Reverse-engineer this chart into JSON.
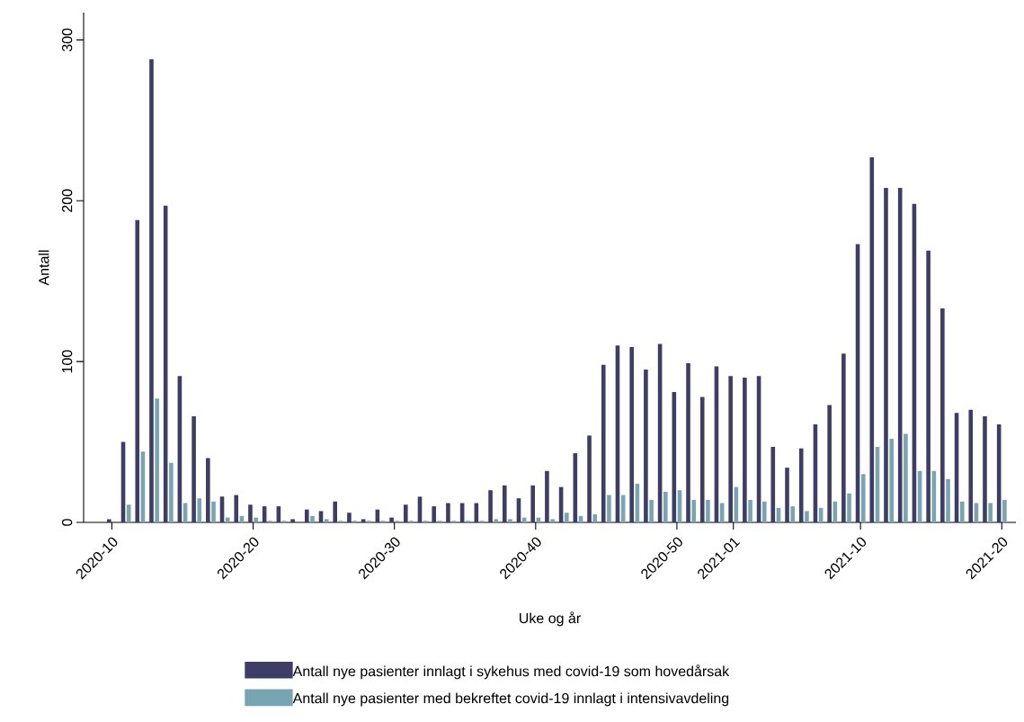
{
  "chart_data": {
    "type": "bar",
    "xlabel": "Uke og år",
    "ylabel": "Antall",
    "categories": [
      "2020-10",
      null,
      null,
      null,
      null,
      null,
      null,
      null,
      null,
      null,
      "2020-20",
      null,
      null,
      null,
      null,
      null,
      null,
      null,
      null,
      null,
      "2020-30",
      null,
      null,
      null,
      null,
      null,
      null,
      null,
      null,
      null,
      "2020-40",
      null,
      null,
      null,
      null,
      null,
      null,
      null,
      null,
      null,
      "2020-50",
      null,
      null,
      null,
      "2021-01",
      null,
      null,
      null,
      null,
      null,
      null,
      null,
      null,
      "2021-10",
      null,
      null,
      null,
      null,
      null,
      null,
      null,
      null,
      null,
      "2021-20"
    ],
    "series": [
      {
        "name": "Antall nye pasienter innlagt i sykehus med covid-19 som hovedårsak",
        "color": "#3d3d68",
        "values": [
          2,
          50,
          188,
          288,
          197,
          91,
          66,
          40,
          16,
          17,
          11,
          10,
          10,
          2,
          8,
          7,
          13,
          6,
          2,
          8,
          3,
          11,
          16,
          10,
          12,
          12,
          12,
          20,
          23,
          15,
          23,
          32,
          22,
          43,
          54,
          98,
          110,
          109,
          95,
          111,
          81,
          99,
          78,
          97,
          91,
          90,
          91,
          47,
          34,
          46,
          61,
          73,
          105,
          173,
          227,
          208,
          208,
          198,
          169,
          133,
          68,
          70,
          66,
          61
        ]
      },
      {
        "name": "Antall nye pasienter med bekreftet covid-19 innlagt i intensivavdeling",
        "color": "#78a5b2",
        "values": [
          0,
          11,
          44,
          77,
          37,
          12,
          15,
          13,
          3,
          4,
          3,
          1,
          1,
          0,
          4,
          2,
          1,
          1,
          1,
          1,
          1,
          1,
          1,
          1,
          1,
          1,
          1,
          2,
          2,
          3,
          3,
          2,
          6,
          4,
          5,
          17,
          17,
          24,
          14,
          19,
          20,
          14,
          14,
          12,
          22,
          14,
          13,
          9,
          10,
          7,
          9,
          13,
          18,
          30,
          47,
          52,
          55,
          32,
          32,
          27,
          13,
          12,
          12,
          14
        ]
      }
    ],
    "ylim": [
      0,
      317
    ],
    "yticks": [
      0,
      100,
      200,
      300
    ],
    "legend": "bottom"
  }
}
